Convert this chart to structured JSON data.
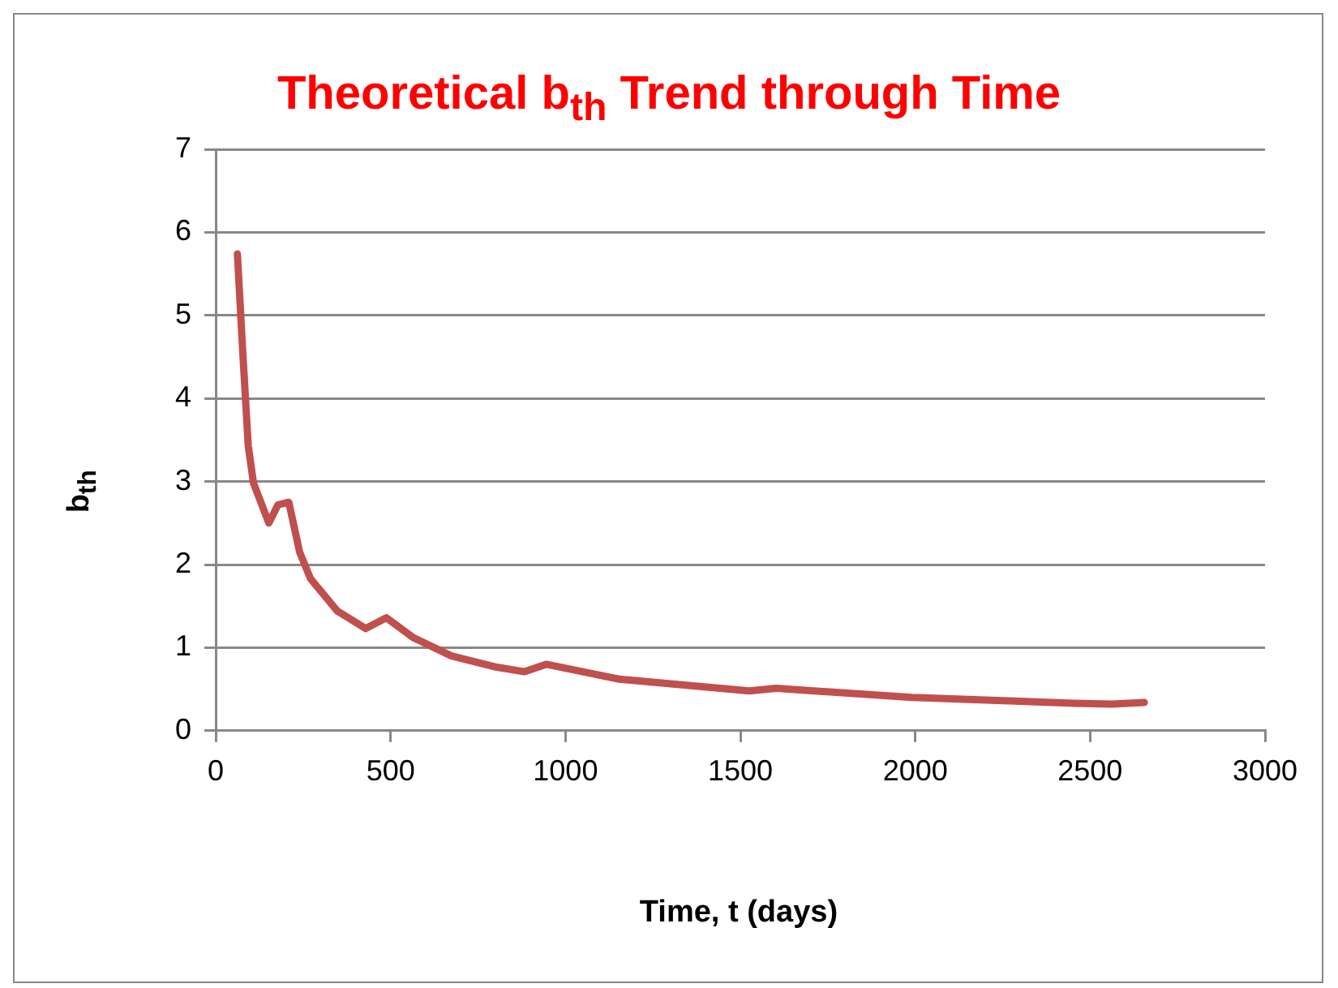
{
  "chart_data": {
    "type": "line",
    "title": "Theoretical b$_{th}$ Trend through Time",
    "xlabel": "Time, t (days)",
    "ylabel": "b$_{th}$",
    "series": [
      {
        "color": "#c0504d",
        "x": [
          62,
          77,
          93,
          108,
          152,
          178,
          209,
          240,
          271,
          348,
          429,
          488,
          565,
          674,
          797,
          883,
          945,
          1061,
          1154,
          1525,
          1603,
          1990,
          2455,
          2562,
          2655
        ],
        "values": [
          5.74,
          4.58,
          3.43,
          2.98,
          2.5,
          2.72,
          2.75,
          2.15,
          1.83,
          1.44,
          1.23,
          1.36,
          1.12,
          0.9,
          0.77,
          0.71,
          0.8,
          0.7,
          0.62,
          0.48,
          0.51,
          0.4,
          0.33,
          0.32,
          0.34
        ]
      }
    ],
    "xlim": [
      0,
      3000
    ],
    "xticks": [
      0,
      500,
      1000,
      1500,
      2000,
      2500,
      3000
    ],
    "ylim": [
      0,
      7
    ],
    "yticks": [
      0,
      1,
      2,
      3,
      4,
      5,
      6,
      7
    ],
    "grid": "y",
    "legend": false,
    "marker": "none",
    "line_style": "solid"
  }
}
